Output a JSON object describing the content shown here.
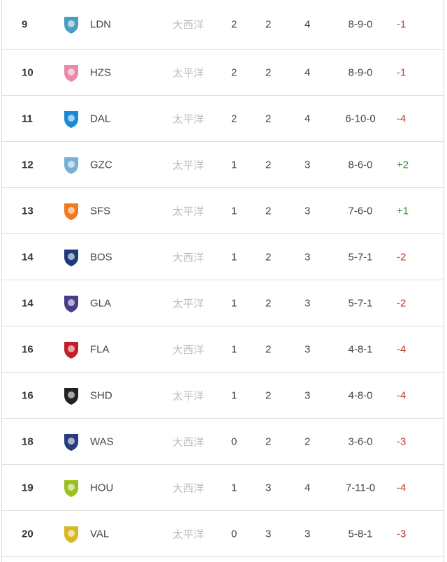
{
  "rows": [
    {
      "rank": "9",
      "team": "LDN",
      "region": "大西洋",
      "c1": "2",
      "c2": "2",
      "c3": "4",
      "record": "8-9-0",
      "diff": "-1",
      "logo": "ldn-logo-icon",
      "color": "#4a9fc0"
    },
    {
      "rank": "10",
      "team": "HZS",
      "region": "太平洋",
      "c1": "2",
      "c2": "2",
      "c3": "4",
      "record": "8-9-0",
      "diff": "-1",
      "logo": "hzs-logo-icon",
      "color": "#e88aa8"
    },
    {
      "rank": "11",
      "team": "DAL",
      "region": "太平洋",
      "c1": "2",
      "c2": "2",
      "c3": "4",
      "record": "6-10-0",
      "diff": "-4",
      "logo": "dal-logo-icon",
      "color": "#1a8ad8"
    },
    {
      "rank": "12",
      "team": "GZC",
      "region": "太平洋",
      "c1": "1",
      "c2": "2",
      "c3": "3",
      "record": "8-6-0",
      "diff": "+2",
      "logo": "gzc-logo-icon",
      "color": "#7ab0d8"
    },
    {
      "rank": "13",
      "team": "SFS",
      "region": "太平洋",
      "c1": "1",
      "c2": "2",
      "c3": "3",
      "record": "7-6-0",
      "diff": "+1",
      "logo": "sfs-logo-icon",
      "color": "#f07a20"
    },
    {
      "rank": "14",
      "team": "BOS",
      "region": "大西洋",
      "c1": "1",
      "c2": "2",
      "c3": "3",
      "record": "5-7-1",
      "diff": "-2",
      "logo": "bos-logo-icon",
      "color": "#1e3a78"
    },
    {
      "rank": "14",
      "team": "GLA",
      "region": "太平洋",
      "c1": "1",
      "c2": "2",
      "c3": "3",
      "record": "5-7-1",
      "diff": "-2",
      "logo": "gla-logo-icon",
      "color": "#4a3a8a"
    },
    {
      "rank": "16",
      "team": "FLA",
      "region": "大西洋",
      "c1": "1",
      "c2": "2",
      "c3": "3",
      "record": "4-8-1",
      "diff": "-4",
      "logo": "fla-logo-icon",
      "color": "#c0202a"
    },
    {
      "rank": "16",
      "team": "SHD",
      "region": "太平洋",
      "c1": "1",
      "c2": "2",
      "c3": "3",
      "record": "4-8-0",
      "diff": "-4",
      "logo": "shd-logo-icon",
      "color": "#222222"
    },
    {
      "rank": "18",
      "team": "WAS",
      "region": "大西洋",
      "c1": "0",
      "c2": "2",
      "c3": "2",
      "record": "3-6-0",
      "diff": "-3",
      "logo": "was-logo-icon",
      "color": "#2a3a80"
    },
    {
      "rank": "19",
      "team": "HOU",
      "region": "大西洋",
      "c1": "1",
      "c2": "3",
      "c3": "4",
      "record": "7-11-0",
      "diff": "-4",
      "logo": "hou-logo-icon",
      "color": "#98c020"
    },
    {
      "rank": "20",
      "team": "VAL",
      "region": "太平洋",
      "c1": "0",
      "c2": "3",
      "c3": "3",
      "record": "5-8-1",
      "diff": "-3",
      "logo": "val-logo-icon",
      "color": "#d8b820"
    }
  ]
}
